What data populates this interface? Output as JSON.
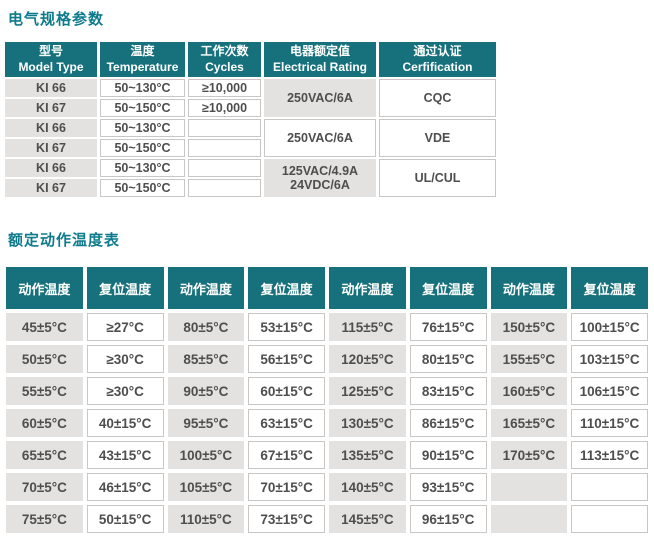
{
  "colors": {
    "header_teal": "#17717c",
    "title_teal": "#0e7b8c",
    "gray_cell": "#e3e2e0",
    "cell_border": "#c8c7c5",
    "data_text": "#4e4e4e"
  },
  "section1": {
    "title": "电气规格参数",
    "table": {
      "headers": [
        {
          "zh": "型号",
          "en": "Model Type"
        },
        {
          "zh": "温度",
          "en": "Temperature"
        },
        {
          "zh": "工作次数",
          "en": "Cycles"
        },
        {
          "zh": "电器额定值",
          "en": "Electrical Rating"
        },
        {
          "zh": "通过认证",
          "en": "Cerfification"
        }
      ],
      "rows": [
        {
          "model": "KI 66",
          "temp": "50~130°C",
          "cycles": "≥10,000"
        },
        {
          "model": "KI 67",
          "temp": "50~150°C",
          "cycles": "≥10,000"
        },
        {
          "model": "KI 66",
          "temp": "50~130°C",
          "cycles": ""
        },
        {
          "model": "KI 67",
          "temp": "50~150°C",
          "cycles": ""
        },
        {
          "model": "KI 66",
          "temp": "50~130°C",
          "cycles": ""
        },
        {
          "model": "KI 67",
          "temp": "50~150°C",
          "cycles": ""
        }
      ],
      "rating_groups": [
        {
          "rating": "250VAC/6A",
          "cert": "CQC"
        },
        {
          "rating": "250VAC/6A",
          "cert": "VDE"
        },
        {
          "rating": "125VAC/4.9A\n24VDC/6A",
          "cert": "UL/CUL"
        }
      ]
    }
  },
  "section2": {
    "title": "额定动作温度表",
    "table": {
      "header_action": "动作温度",
      "header_reset": "复位温度",
      "rows": [
        [
          "45±5°C",
          "≥27°C",
          "80±5°C",
          "53±15°C",
          "115±5°C",
          "76±15°C",
          "150±5°C",
          "100±15°C"
        ],
        [
          "50±5°C",
          "≥30°C",
          "85±5°C",
          "56±15°C",
          "120±5°C",
          "80±15°C",
          "155±5°C",
          "103±15°C"
        ],
        [
          "55±5°C",
          "≥30°C",
          "90±5°C",
          "60±15°C",
          "125±5°C",
          "83±15°C",
          "160±5°C",
          "106±15°C"
        ],
        [
          "60±5°C",
          "40±15°C",
          "95±5°C",
          "63±15°C",
          "130±5°C",
          "86±15°C",
          "165±5°C",
          "110±15°C"
        ],
        [
          "65±5°C",
          "43±15°C",
          "100±5°C",
          "67±15°C",
          "135±5°C",
          "90±15°C",
          "170±5°C",
          "113±15°C"
        ],
        [
          "70±5°C",
          "46±15°C",
          "105±5°C",
          "70±15°C",
          "140±5°C",
          "93±15°C",
          "",
          ""
        ],
        [
          "75±5°C",
          "50±15°C",
          "110±5°C",
          "73±15°C",
          "145±5°C",
          "96±15°C",
          "",
          ""
        ]
      ]
    }
  }
}
